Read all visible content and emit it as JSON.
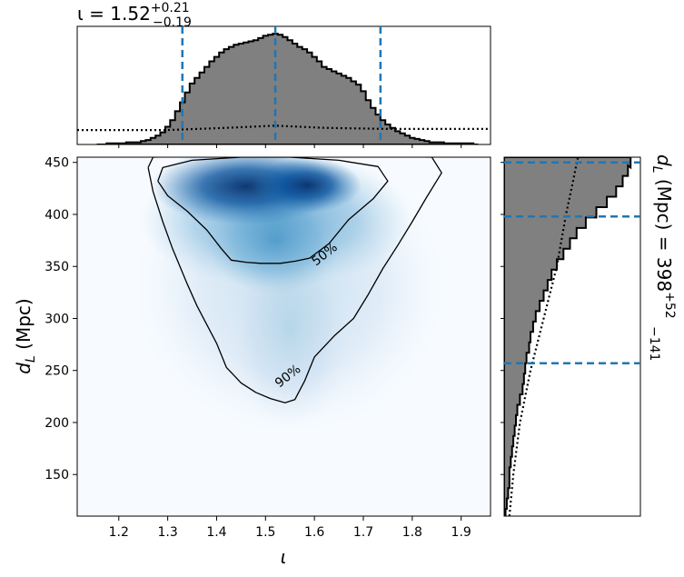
{
  "chart_data": [
    {
      "type": "histogram",
      "panel": "top-marginal",
      "title_parts": {
        "symbol": "ι",
        "eq": " = ",
        "value": "1.52",
        "plus": "+0.21",
        "minus": "−0.19"
      },
      "xlim": [
        1.115,
        1.96
      ],
      "ylim": [
        0,
        1
      ],
      "bins": {
        "x": [
          1.16,
          1.17,
          1.18,
          1.19,
          1.2,
          1.21,
          1.22,
          1.23,
          1.24,
          1.25,
          1.26,
          1.27,
          1.28,
          1.29,
          1.3,
          1.31,
          1.32,
          1.33,
          1.34,
          1.35,
          1.36,
          1.37,
          1.38,
          1.39,
          1.4,
          1.41,
          1.42,
          1.43,
          1.44,
          1.45,
          1.46,
          1.47,
          1.48,
          1.49,
          1.5,
          1.51,
          1.52,
          1.53,
          1.54,
          1.55,
          1.56,
          1.57,
          1.58,
          1.59,
          1.6,
          1.61,
          1.62,
          1.63,
          1.64,
          1.65,
          1.66,
          1.67,
          1.68,
          1.69,
          1.7,
          1.71,
          1.72,
          1.73,
          1.74,
          1.75,
          1.76,
          1.77,
          1.78,
          1.79,
          1.8,
          1.81,
          1.82,
          1.83,
          1.84,
          1.85,
          1.86,
          1.87,
          1.88,
          1.89,
          1.9,
          1.91,
          1.92,
          1.93
        ],
        "density": [
          0,
          0,
          0.01,
          0.01,
          0.01,
          0.01,
          0.02,
          0.02,
          0.02,
          0.03,
          0.04,
          0.06,
          0.08,
          0.11,
          0.16,
          0.22,
          0.3,
          0.38,
          0.47,
          0.55,
          0.6,
          0.65,
          0.7,
          0.75,
          0.79,
          0.83,
          0.86,
          0.88,
          0.9,
          0.91,
          0.92,
          0.93,
          0.94,
          0.96,
          0.98,
          0.99,
          1.0,
          0.99,
          0.97,
          0.94,
          0.91,
          0.88,
          0.86,
          0.83,
          0.79,
          0.75,
          0.7,
          0.68,
          0.66,
          0.64,
          0.62,
          0.6,
          0.57,
          0.54,
          0.48,
          0.4,
          0.33,
          0.27,
          0.22,
          0.18,
          0.15,
          0.12,
          0.1,
          0.08,
          0.06,
          0.05,
          0.04,
          0.03,
          0.02,
          0.02,
          0.02,
          0.01,
          0.01,
          0.01,
          0.01,
          0.01,
          0.01,
          0
        ]
      },
      "prior": [
        [
          1.115,
          0.13
        ],
        [
          1.3,
          0.13
        ],
        [
          1.42,
          0.15
        ],
        [
          1.52,
          0.17
        ],
        [
          1.62,
          0.15
        ],
        [
          1.75,
          0.14
        ],
        [
          1.96,
          0.14
        ]
      ],
      "quantile_lines": [
        1.33,
        1.52,
        1.735
      ]
    },
    {
      "type": "heatmap",
      "panel": "joint",
      "xlabel": "ι",
      "ylabel": "d_L (Mpc)",
      "xlim": [
        1.115,
        1.96
      ],
      "ylim": [
        110,
        455
      ],
      "xticks": [
        "1.2",
        "1.3",
        "1.4",
        "1.5",
        "1.6",
        "1.7",
        "1.8",
        "1.9"
      ],
      "yticks": [
        "150",
        "200",
        "250",
        "300",
        "350",
        "400",
        "450"
      ],
      "density_peak": {
        "x": 1.46,
        "y": 427
      },
      "contours": [
        {
          "label": "50%",
          "label_at": [
            1.62,
            362
          ],
          "points": [
            [
              1.28,
              432
            ],
            [
              1.29,
              445
            ],
            [
              1.35,
              452
            ],
            [
              1.45,
              455
            ],
            [
              1.55,
              455
            ],
            [
              1.65,
              452
            ],
            [
              1.73,
              446
            ],
            [
              1.75,
              432
            ],
            [
              1.72,
              415
            ],
            [
              1.67,
              395
            ],
            [
              1.63,
              372
            ],
            [
              1.59,
              358
            ],
            [
              1.56,
              355
            ],
            [
              1.53,
              353
            ],
            [
              1.51,
              353
            ],
            [
              1.49,
              353
            ],
            [
              1.46,
              354
            ],
            [
              1.43,
              356
            ],
            [
              1.41,
              367
            ],
            [
              1.38,
              385
            ],
            [
              1.34,
              403
            ],
            [
              1.3,
              418
            ],
            [
              1.28,
              432
            ]
          ]
        },
        {
          "label": "90%",
          "label_at": [
            1.545,
            245
          ],
          "points": [
            [
              1.26,
              445
            ],
            [
              1.27,
              455
            ],
            [
              1.4,
              456
            ],
            [
              1.55,
              456
            ],
            [
              1.7,
              456
            ],
            [
              1.84,
              455
            ],
            [
              1.86,
              440
            ],
            [
              1.83,
              417
            ],
            [
              1.8,
              393
            ],
            [
              1.77,
              370
            ],
            [
              1.74,
              348
            ],
            [
              1.71,
              323
            ],
            [
              1.68,
              300
            ],
            [
              1.64,
              283
            ],
            [
              1.6,
              263
            ],
            [
              1.58,
              240
            ],
            [
              1.56,
              222
            ],
            [
              1.54,
              219
            ],
            [
              1.51,
              223
            ],
            [
              1.48,
              229
            ],
            [
              1.45,
              238
            ],
            [
              1.42,
              253
            ],
            [
              1.4,
              276
            ],
            [
              1.38,
              294
            ],
            [
              1.36,
              312
            ],
            [
              1.34,
              333
            ],
            [
              1.31,
              367
            ],
            [
              1.29,
              393
            ],
            [
              1.27,
              422
            ],
            [
              1.26,
              445
            ]
          ]
        }
      ]
    },
    {
      "type": "histogram",
      "panel": "right-marginal",
      "title_parts": {
        "symbol": "d",
        "sub": "L",
        "unit": " (Mpc) = ",
        "value": "398",
        "plus": "+52",
        "minus": "−141"
      },
      "ylim": [
        110,
        455
      ],
      "xlim": [
        0,
        1
      ],
      "bins": {
        "y": [
          112,
          122,
          132,
          142,
          152,
          162,
          172,
          182,
          192,
          202,
          212,
          222,
          232,
          242,
          252,
          262,
          272,
          282,
          292,
          302,
          312,
          322,
          332,
          342,
          352,
          362,
          372,
          382,
          392,
          402,
          412,
          422,
          432,
          442,
          450
        ],
        "density": [
          0.01,
          0.02,
          0.03,
          0.04,
          0.04,
          0.05,
          0.06,
          0.07,
          0.08,
          0.09,
          0.1,
          0.12,
          0.14,
          0.15,
          0.16,
          0.17,
          0.19,
          0.2,
          0.22,
          0.24,
          0.27,
          0.3,
          0.33,
          0.36,
          0.4,
          0.45,
          0.5,
          0.55,
          0.62,
          0.7,
          0.78,
          0.85,
          0.9,
          0.94,
          0.96
        ]
      },
      "prior": [
        [
          110,
          0.04
        ],
        [
          150,
          0.07
        ],
        [
          200,
          0.12
        ],
        [
          250,
          0.2
        ],
        [
          300,
          0.3
        ],
        [
          350,
          0.4
        ],
        [
          400,
          0.47
        ],
        [
          430,
          0.52
        ],
        [
          455,
          0.56
        ]
      ],
      "quantile_lines": [
        257,
        398,
        450
      ]
    }
  ]
}
